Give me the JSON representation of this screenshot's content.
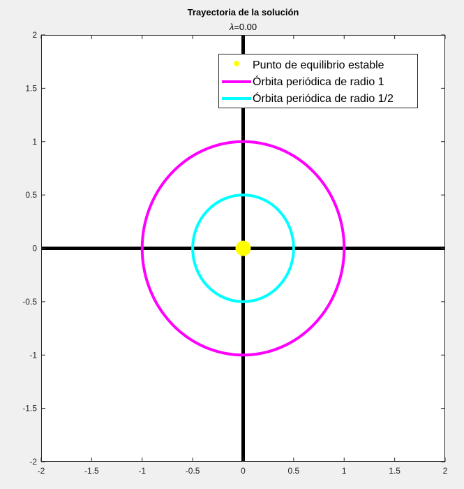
{
  "chart_data": {
    "type": "line",
    "title": "Trayectoria de la solución",
    "subtitle_symbol": "λ",
    "subtitle_value": "=0.00",
    "xlim": [
      -2,
      2
    ],
    "ylim": [
      -2,
      2
    ],
    "x_ticks": [
      -2,
      -1.5,
      -1,
      -0.5,
      0,
      0.5,
      1,
      1.5,
      2
    ],
    "x_tick_labels": [
      "-2",
      "-1.5",
      "-1",
      "-0.5",
      "0",
      "0.5",
      "1",
      "1.5",
      "2"
    ],
    "y_ticks": [
      -2,
      -1.5,
      -1,
      -0.5,
      0,
      0.5,
      1,
      1.5,
      2
    ],
    "y_tick_labels": [
      "-2",
      "-1.5",
      "-1",
      "-0.5",
      "0",
      "0.5",
      "1",
      "1.5",
      "2"
    ],
    "grid": false,
    "legend_position": "top-right",
    "axes_lines": {
      "color": "#000000",
      "horizontal": {
        "y": 0,
        "x_range": [
          -2,
          2
        ]
      },
      "vertical": {
        "x": 0,
        "y_range": [
          -2,
          2
        ]
      }
    },
    "series": [
      {
        "name": "Punto de equilibrio estable",
        "kind": "point",
        "color": "#ffff00",
        "x": 0,
        "y": 0
      },
      {
        "name": "Órbita periódica de radio 1",
        "kind": "circle",
        "color": "#ff00ff",
        "center": [
          0,
          0
        ],
        "radius": 1
      },
      {
        "name": "Órbita periódica de radio 1/2",
        "kind": "circle",
        "color": "#00ffff",
        "center": [
          0,
          0
        ],
        "radius": 0.5
      }
    ]
  }
}
